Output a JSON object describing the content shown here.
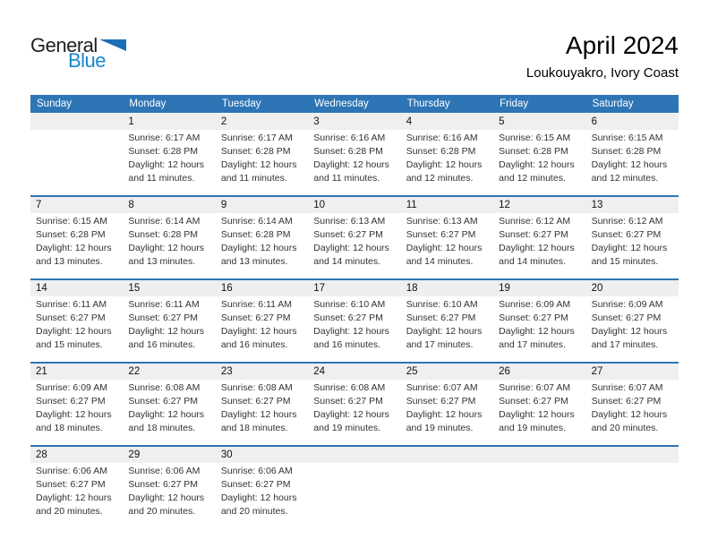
{
  "logo": {
    "part1": "General",
    "part2": "Blue"
  },
  "header": {
    "title": "April 2024",
    "subtitle": "Loukouyakro, Ivory Coast"
  },
  "colors": {
    "header_blue": "#2E75B5",
    "row_gray": "#EFEFEF",
    "logo_blue": "#1587CE",
    "logo_triangle": "#1D6FB5",
    "text_dark": "#333333"
  },
  "calendar": {
    "weekdays": [
      "Sunday",
      "Monday",
      "Tuesday",
      "Wednesday",
      "Thursday",
      "Friday",
      "Saturday"
    ],
    "labels": {
      "sunrise": "Sunrise:",
      "sunset": "Sunset:",
      "daylight": "Daylight:"
    },
    "weeks": [
      [
        null,
        {
          "day": "1",
          "sunrise": "6:17 AM",
          "sunset": "6:28 PM",
          "daylight": "12 hours and 11 minutes."
        },
        {
          "day": "2",
          "sunrise": "6:17 AM",
          "sunset": "6:28 PM",
          "daylight": "12 hours and 11 minutes."
        },
        {
          "day": "3",
          "sunrise": "6:16 AM",
          "sunset": "6:28 PM",
          "daylight": "12 hours and 11 minutes."
        },
        {
          "day": "4",
          "sunrise": "6:16 AM",
          "sunset": "6:28 PM",
          "daylight": "12 hours and 12 minutes."
        },
        {
          "day": "5",
          "sunrise": "6:15 AM",
          "sunset": "6:28 PM",
          "daylight": "12 hours and 12 minutes."
        },
        {
          "day": "6",
          "sunrise": "6:15 AM",
          "sunset": "6:28 PM",
          "daylight": "12 hours and 12 minutes."
        }
      ],
      [
        {
          "day": "7",
          "sunrise": "6:15 AM",
          "sunset": "6:28 PM",
          "daylight": "12 hours and 13 minutes."
        },
        {
          "day": "8",
          "sunrise": "6:14 AM",
          "sunset": "6:28 PM",
          "daylight": "12 hours and 13 minutes."
        },
        {
          "day": "9",
          "sunrise": "6:14 AM",
          "sunset": "6:28 PM",
          "daylight": "12 hours and 13 minutes."
        },
        {
          "day": "10",
          "sunrise": "6:13 AM",
          "sunset": "6:27 PM",
          "daylight": "12 hours and 14 minutes."
        },
        {
          "day": "11",
          "sunrise": "6:13 AM",
          "sunset": "6:27 PM",
          "daylight": "12 hours and 14 minutes."
        },
        {
          "day": "12",
          "sunrise": "6:12 AM",
          "sunset": "6:27 PM",
          "daylight": "12 hours and 14 minutes."
        },
        {
          "day": "13",
          "sunrise": "6:12 AM",
          "sunset": "6:27 PM",
          "daylight": "12 hours and 15 minutes."
        }
      ],
      [
        {
          "day": "14",
          "sunrise": "6:11 AM",
          "sunset": "6:27 PM",
          "daylight": "12 hours and 15 minutes."
        },
        {
          "day": "15",
          "sunrise": "6:11 AM",
          "sunset": "6:27 PM",
          "daylight": "12 hours and 16 minutes."
        },
        {
          "day": "16",
          "sunrise": "6:11 AM",
          "sunset": "6:27 PM",
          "daylight": "12 hours and 16 minutes."
        },
        {
          "day": "17",
          "sunrise": "6:10 AM",
          "sunset": "6:27 PM",
          "daylight": "12 hours and 16 minutes."
        },
        {
          "day": "18",
          "sunrise": "6:10 AM",
          "sunset": "6:27 PM",
          "daylight": "12 hours and 17 minutes."
        },
        {
          "day": "19",
          "sunrise": "6:09 AM",
          "sunset": "6:27 PM",
          "daylight": "12 hours and 17 minutes."
        },
        {
          "day": "20",
          "sunrise": "6:09 AM",
          "sunset": "6:27 PM",
          "daylight": "12 hours and 17 minutes."
        }
      ],
      [
        {
          "day": "21",
          "sunrise": "6:09 AM",
          "sunset": "6:27 PM",
          "daylight": "12 hours and 18 minutes."
        },
        {
          "day": "22",
          "sunrise": "6:08 AM",
          "sunset": "6:27 PM",
          "daylight": "12 hours and 18 minutes."
        },
        {
          "day": "23",
          "sunrise": "6:08 AM",
          "sunset": "6:27 PM",
          "daylight": "12 hours and 18 minutes."
        },
        {
          "day": "24",
          "sunrise": "6:08 AM",
          "sunset": "6:27 PM",
          "daylight": "12 hours and 19 minutes."
        },
        {
          "day": "25",
          "sunrise": "6:07 AM",
          "sunset": "6:27 PM",
          "daylight": "12 hours and 19 minutes."
        },
        {
          "day": "26",
          "sunrise": "6:07 AM",
          "sunset": "6:27 PM",
          "daylight": "12 hours and 19 minutes."
        },
        {
          "day": "27",
          "sunrise": "6:07 AM",
          "sunset": "6:27 PM",
          "daylight": "12 hours and 20 minutes."
        }
      ],
      [
        {
          "day": "28",
          "sunrise": "6:06 AM",
          "sunset": "6:27 PM",
          "daylight": "12 hours and 20 minutes."
        },
        {
          "day": "29",
          "sunrise": "6:06 AM",
          "sunset": "6:27 PM",
          "daylight": "12 hours and 20 minutes."
        },
        {
          "day": "30",
          "sunrise": "6:06 AM",
          "sunset": "6:27 PM",
          "daylight": "12 hours and 20 minutes."
        },
        null,
        null,
        null,
        null
      ]
    ]
  }
}
